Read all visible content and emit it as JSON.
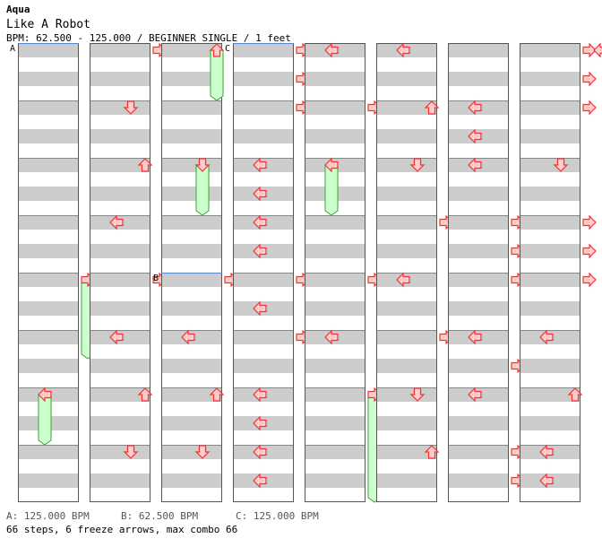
{
  "header": {
    "artist": "Aqua",
    "title": "Like A Robot",
    "info": "BPM: 62.500 - 125.000 / BEGINNER SINGLE / 1 feet"
  },
  "colors": {
    "stripe_gray": "#cccccc",
    "arrow_fill": "#ffcccc",
    "arrow_stroke": "#ee3333",
    "freeze_fill": "#ccffcc",
    "freeze_stroke": "#33aa33",
    "bpm_line": "#5588cc"
  },
  "chart": {
    "measures_per_column": 8,
    "rows_per_measure": 4,
    "columns": [
      {
        "notes": [
          {
            "m": 4,
            "r": 0,
            "dir": "right",
            "icon": "right-arrow-icon",
            "freeze_to": [
              5,
              2
            ]
          },
          {
            "m": 6,
            "r": 0,
            "dir": "left",
            "icon": "left-arrow-icon",
            "freeze_to": [
              7,
              0
            ]
          }
        ],
        "markers": [
          {
            "m": 0,
            "label": "A"
          }
        ]
      },
      {
        "notes": [
          {
            "m": 0,
            "r": 0,
            "dir": "right",
            "icon": "right-arrow-icon"
          },
          {
            "m": 1,
            "r": 0,
            "dir": "down",
            "icon": "down-arrow-icon"
          },
          {
            "m": 2,
            "r": 0,
            "dir": "up",
            "icon": "up-arrow-icon"
          },
          {
            "m": 3,
            "r": 0,
            "dir": "left",
            "icon": "left-arrow-icon"
          },
          {
            "m": 4,
            "r": 0,
            "dir": "right",
            "icon": "right-arrow-icon"
          },
          {
            "m": 5,
            "r": 0,
            "dir": "left",
            "icon": "left-arrow-icon"
          },
          {
            "m": 6,
            "r": 0,
            "dir": "up",
            "icon": "up-arrow-icon"
          },
          {
            "m": 7,
            "r": 0,
            "dir": "down",
            "icon": "down-arrow-icon"
          }
        ],
        "markers": []
      },
      {
        "notes": [
          {
            "m": 0,
            "r": 0,
            "dir": "up",
            "icon": "up-arrow-icon",
            "freeze_to": [
              1,
              0
            ]
          },
          {
            "m": 2,
            "r": 0,
            "dir": "down",
            "icon": "down-arrow-icon",
            "freeze_to": [
              3,
              0
            ]
          },
          {
            "m": 4,
            "r": 0,
            "dir": "right",
            "icon": "right-arrow-icon"
          },
          {
            "m": 5,
            "r": 0,
            "dir": "left",
            "icon": "left-arrow-icon"
          },
          {
            "m": 6,
            "r": 0,
            "dir": "up",
            "icon": "up-arrow-icon"
          },
          {
            "m": 7,
            "r": 0,
            "dir": "down",
            "icon": "down-arrow-icon"
          }
        ],
        "markers": [
          {
            "m": 4,
            "label": "B"
          }
        ]
      },
      {
        "notes": [
          {
            "m": 0,
            "r": 0,
            "dir": "right",
            "icon": "right-arrow-icon"
          },
          {
            "m": 0,
            "r": 2,
            "dir": "right",
            "icon": "right-arrow-icon"
          },
          {
            "m": 1,
            "r": 0,
            "dir": "right",
            "icon": "right-arrow-icon"
          },
          {
            "m": 2,
            "r": 0,
            "dir": "left",
            "icon": "left-arrow-icon"
          },
          {
            "m": 2,
            "r": 2,
            "dir": "left",
            "icon": "left-arrow-icon"
          },
          {
            "m": 3,
            "r": 0,
            "dir": "left",
            "icon": "left-arrow-icon"
          },
          {
            "m": 3,
            "r": 2,
            "dir": "left",
            "icon": "left-arrow-icon"
          },
          {
            "m": 4,
            "r": 0,
            "dir": "right",
            "icon": "right-arrow-icon"
          },
          {
            "m": 4,
            "r": 2,
            "dir": "left",
            "icon": "left-arrow-icon"
          },
          {
            "m": 5,
            "r": 0,
            "dir": "right",
            "icon": "right-arrow-icon"
          },
          {
            "m": 6,
            "r": 0,
            "dir": "left",
            "icon": "left-arrow-icon"
          },
          {
            "m": 6,
            "r": 2,
            "dir": "left",
            "icon": "left-arrow-icon"
          },
          {
            "m": 7,
            "r": 0,
            "dir": "left",
            "icon": "left-arrow-icon"
          },
          {
            "m": 7,
            "r": 2,
            "dir": "left",
            "icon": "left-arrow-icon"
          }
        ],
        "markers": [
          {
            "m": 0,
            "label": "C"
          }
        ]
      },
      {
        "notes": [
          {
            "m": 0,
            "r": 0,
            "dir": "left",
            "icon": "left-arrow-icon"
          },
          {
            "m": 1,
            "r": 0,
            "dir": "right",
            "icon": "right-arrow-icon"
          },
          {
            "m": 2,
            "r": 0,
            "dir": "left",
            "icon": "left-arrow-icon",
            "freeze_to": [
              3,
              0
            ]
          },
          {
            "m": 4,
            "r": 0,
            "dir": "right",
            "icon": "right-arrow-icon"
          },
          {
            "m": 5,
            "r": 0,
            "dir": "left",
            "icon": "left-arrow-icon"
          },
          {
            "m": 6,
            "r": 0,
            "dir": "right",
            "icon": "right-arrow-icon",
            "freeze_to": [
              8,
              0
            ]
          }
        ],
        "markers": []
      },
      {
        "notes": [
          {
            "m": 0,
            "r": 0,
            "dir": "left",
            "icon": "left-arrow-icon"
          },
          {
            "m": 1,
            "r": 0,
            "dir": "up",
            "icon": "up-arrow-icon"
          },
          {
            "m": 2,
            "r": 0,
            "dir": "down",
            "icon": "down-arrow-icon"
          },
          {
            "m": 3,
            "r": 0,
            "dir": "right",
            "icon": "right-arrow-icon"
          },
          {
            "m": 4,
            "r": 0,
            "dir": "left",
            "icon": "left-arrow-icon"
          },
          {
            "m": 5,
            "r": 0,
            "dir": "right",
            "icon": "right-arrow-icon"
          },
          {
            "m": 6,
            "r": 0,
            "dir": "down",
            "icon": "down-arrow-icon"
          },
          {
            "m": 7,
            "r": 0,
            "dir": "up",
            "icon": "up-arrow-icon"
          }
        ],
        "markers": []
      },
      {
        "notes": [
          {
            "m": 1,
            "r": 0,
            "dir": "left",
            "icon": "left-arrow-icon"
          },
          {
            "m": 1,
            "r": 2,
            "dir": "left",
            "icon": "left-arrow-icon"
          },
          {
            "m": 2,
            "r": 0,
            "dir": "left",
            "icon": "left-arrow-icon"
          },
          {
            "m": 3,
            "r": 0,
            "dir": "right",
            "icon": "right-arrow-icon"
          },
          {
            "m": 3,
            "r": 2,
            "dir": "right",
            "icon": "right-arrow-icon"
          },
          {
            "m": 4,
            "r": 0,
            "dir": "right",
            "icon": "right-arrow-icon"
          },
          {
            "m": 5,
            "r": 0,
            "dir": "left",
            "icon": "left-arrow-icon"
          },
          {
            "m": 5,
            "r": 2,
            "dir": "right",
            "icon": "right-arrow-icon"
          },
          {
            "m": 6,
            "r": 0,
            "dir": "left",
            "icon": "left-arrow-icon"
          },
          {
            "m": 7,
            "r": 0,
            "dir": "right",
            "icon": "right-arrow-icon"
          },
          {
            "m": 7,
            "r": 2,
            "dir": "right",
            "icon": "right-arrow-icon"
          }
        ],
        "markers": []
      },
      {
        "notes": [
          {
            "m": 0,
            "r": 0,
            "dir": "right",
            "icon": "right-arrow-icon"
          },
          {
            "m": 0,
            "r": 2,
            "dir": "right",
            "icon": "right-arrow-icon"
          },
          {
            "m": 1,
            "r": 0,
            "dir": "right",
            "icon": "right-arrow-icon"
          },
          {
            "m": 2,
            "r": 0,
            "dir": "down",
            "icon": "down-arrow-icon"
          },
          {
            "m": 3,
            "r": 0,
            "dir": "right",
            "icon": "right-arrow-icon"
          },
          {
            "m": 3,
            "r": 2,
            "dir": "right",
            "icon": "right-arrow-icon"
          },
          {
            "m": 4,
            "r": 0,
            "dir": "right",
            "icon": "right-arrow-icon"
          },
          {
            "m": 5,
            "r": 0,
            "dir": "left",
            "icon": "left-arrow-icon"
          },
          {
            "m": 6,
            "r": 0,
            "dir": "up",
            "icon": "up-arrow-icon"
          },
          {
            "m": 7,
            "r": 0,
            "dir": "left",
            "icon": "left-arrow-icon"
          },
          {
            "m": 7,
            "r": 2,
            "dir": "left",
            "icon": "left-arrow-icon"
          }
        ],
        "markers": []
      }
    ],
    "edge_arrow": {
      "dir": "left",
      "icon": "left-arrow-icon"
    }
  },
  "footer": {
    "bpm_a": "A: 125.000 BPM",
    "bpm_b": "B: 62.500 BPM",
    "bpm_c": "C: 125.000 BPM",
    "stats": "66 steps, 6 freeze arrows, max combo 66"
  }
}
